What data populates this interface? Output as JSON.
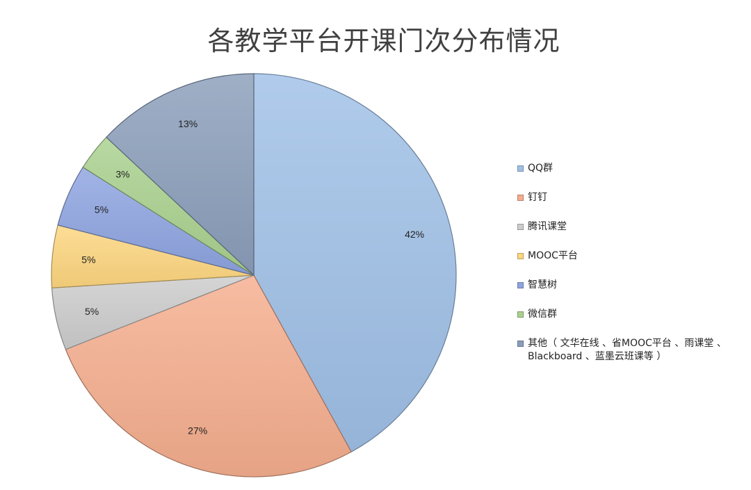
{
  "chart_data": {
    "type": "pie",
    "title": "各教学平台开课门次分布情况",
    "slices": [
      {
        "label": "QQ群",
        "value": 42,
        "display": "42%",
        "color": "#9fc0e6"
      },
      {
        "label": "钉钉",
        "value": 27,
        "display": "27%",
        "color": "#f5ad8e"
      },
      {
        "label": "腾讯课堂",
        "value": 5,
        "display": "5%",
        "color": "#cccccc"
      },
      {
        "label": "MOOC平台",
        "value": 5,
        "display": "5%",
        "color": "#fdd67f"
      },
      {
        "label": "智慧树",
        "value": 5,
        "display": "5%",
        "color": "#8ea4e0"
      },
      {
        "label": "微信群",
        "value": 3,
        "display": "3%",
        "color": "#a9d18e"
      },
      {
        "label": "其他（ 文华在线 、省MOOC平台 、雨课堂 、Blackboard 、蓝墨云班课等 ）",
        "value": 13,
        "display": "13%",
        "color": "#8a9dba"
      }
    ],
    "legend_position": "right"
  }
}
